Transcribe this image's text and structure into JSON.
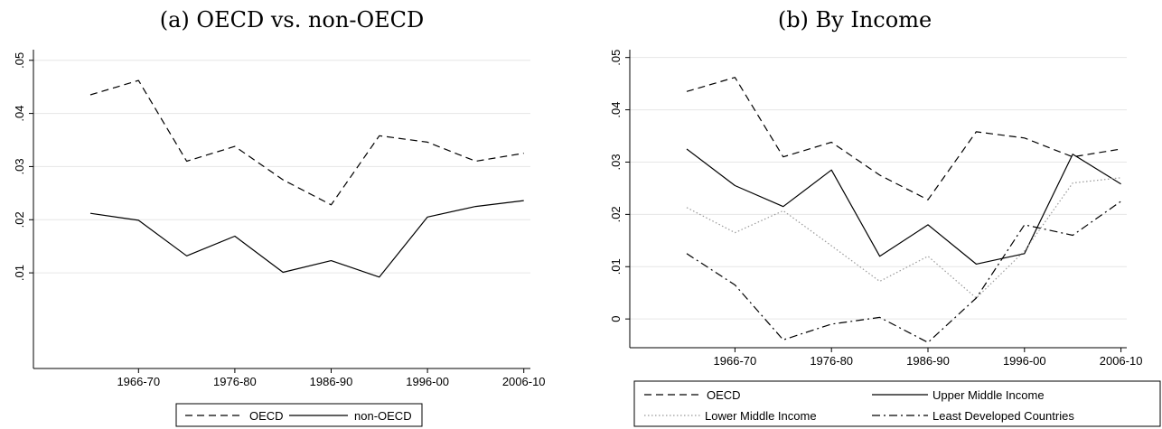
{
  "chart_data": [
    {
      "type": "line",
      "title": "(a) OECD vs. non-OECD",
      "xlabel": "",
      "ylabel": "",
      "ylim": [
        -0.008,
        0.052
      ],
      "yticks": [
        0.01,
        0.02,
        0.03,
        0.04,
        0.05
      ],
      "ytick_labels": [
        ".01",
        ".02",
        ".03",
        ".04",
        ".05"
      ],
      "x": [
        "1961-65",
        "1966-70",
        "1971-75",
        "1976-80",
        "1981-85",
        "1986-90",
        "1991-95",
        "1996-00",
        "2001-05",
        "2006-10"
      ],
      "xtick_labels": [
        "1966-70",
        "1976-80",
        "1986-90",
        "1996-00",
        "2006-10"
      ],
      "series": [
        {
          "name": "OECD",
          "style": "dashed",
          "color": "#000000",
          "values": [
            0.0435,
            0.0462,
            0.031,
            0.0338,
            0.0275,
            0.0228,
            0.0358,
            0.0346,
            0.031,
            0.0325
          ]
        },
        {
          "name": "non-OECD",
          "style": "solid",
          "color": "#000000",
          "values": [
            0.0212,
            0.0199,
            0.0132,
            0.0169,
            0.0101,
            0.0123,
            0.0092,
            0.0205,
            0.0225,
            0.0236
          ]
        }
      ],
      "legend_position": "bottom",
      "grid": true
    },
    {
      "type": "line",
      "title": "(b) By Income",
      "xlabel": "",
      "ylabel": "",
      "ylim": [
        -0.0055,
        0.0515
      ],
      "yticks": [
        0,
        0.01,
        0.02,
        0.03,
        0.04,
        0.05
      ],
      "ytick_labels": [
        "0",
        ".01",
        ".02",
        ".03",
        ".04",
        ".05"
      ],
      "x": [
        "1961-65",
        "1966-70",
        "1971-75",
        "1976-80",
        "1981-85",
        "1986-90",
        "1991-95",
        "1996-00",
        "2001-05",
        "2006-10"
      ],
      "xtick_labels": [
        "1966-70",
        "1976-80",
        "1986-90",
        "1996-00",
        "2006-10"
      ],
      "series": [
        {
          "name": "OECD",
          "style": "dashed",
          "color": "#000000",
          "values": [
            0.0435,
            0.0462,
            0.031,
            0.0338,
            0.0275,
            0.0228,
            0.0358,
            0.0346,
            0.031,
            0.0325
          ]
        },
        {
          "name": "Upper Middle Income",
          "style": "solid",
          "color": "#000000",
          "values": [
            0.0325,
            0.0255,
            0.0215,
            0.0285,
            0.012,
            0.018,
            0.0105,
            0.0125,
            0.0315,
            0.0258
          ]
        },
        {
          "name": "Lower Middle Income",
          "style": "dotted",
          "color": "#999999",
          "values": [
            0.0213,
            0.0165,
            0.0207,
            0.014,
            0.0072,
            0.012,
            0.004,
            0.013,
            0.026,
            0.027
          ]
        },
        {
          "name": "Least Developed Countries",
          "style": "dashdot",
          "color": "#000000",
          "values": [
            0.0125,
            0.0065,
            -0.004,
            -0.001,
            0.0003,
            -0.0045,
            0.004,
            0.018,
            0.016,
            0.0225
          ]
        }
      ],
      "legend_position": "bottom",
      "grid": true
    }
  ]
}
